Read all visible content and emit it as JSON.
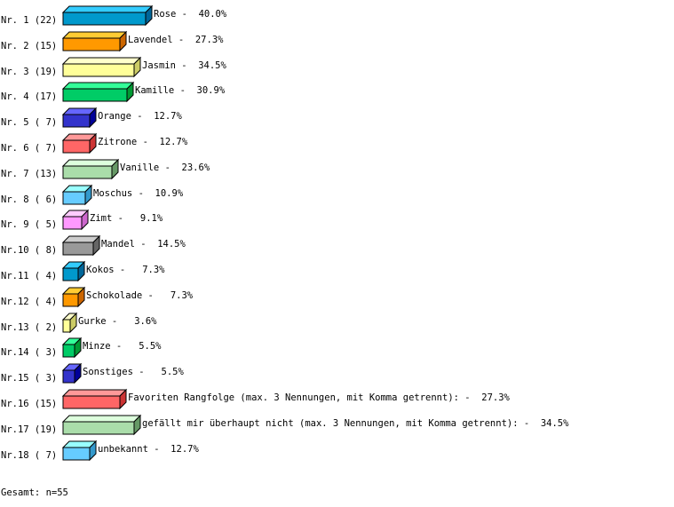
{
  "chart_data": {
    "type": "bar",
    "orientation": "horizontal",
    "style": "3d",
    "grid": false,
    "xlim": [
      0,
      100
    ],
    "rows": [
      {
        "rank": "Nr. 1",
        "count": 22,
        "category": "Rose",
        "percent": 40.0,
        "left_label": "Nr. 1 (22)",
        "right_label": "Rose -  40.0%"
      },
      {
        "rank": "Nr. 2",
        "count": 15,
        "category": "Lavendel",
        "percent": 27.3,
        "left_label": "Nr. 2 (15)",
        "right_label": "Lavendel -  27.3%"
      },
      {
        "rank": "Nr. 3",
        "count": 19,
        "category": "Jasmin",
        "percent": 34.5,
        "left_label": "Nr. 3 (19)",
        "right_label": "Jasmin -  34.5%"
      },
      {
        "rank": "Nr. 4",
        "count": 17,
        "category": "Kamille",
        "percent": 30.9,
        "left_label": "Nr. 4 (17)",
        "right_label": "Kamille -  30.9%"
      },
      {
        "rank": "Nr. 5",
        "count": 7,
        "category": "Orange",
        "percent": 12.7,
        "left_label": "Nr. 5 ( 7)",
        "right_label": "Orange -  12.7%"
      },
      {
        "rank": "Nr. 6",
        "count": 7,
        "category": "Zitrone",
        "percent": 12.7,
        "left_label": "Nr. 6 ( 7)",
        "right_label": "Zitrone -  12.7%"
      },
      {
        "rank": "Nr. 7",
        "count": 13,
        "category": "Vanille",
        "percent": 23.6,
        "left_label": "Nr. 7 (13)",
        "right_label": "Vanille -  23.6%"
      },
      {
        "rank": "Nr. 8",
        "count": 6,
        "category": "Moschus",
        "percent": 10.9,
        "left_label": "Nr. 8 ( 6)",
        "right_label": "Moschus -  10.9%"
      },
      {
        "rank": "Nr. 9",
        "count": 5,
        "category": "Zimt",
        "percent": 9.1,
        "left_label": "Nr. 9 ( 5)",
        "right_label": "Zimt -   9.1%"
      },
      {
        "rank": "Nr.10",
        "count": 8,
        "category": "Mandel",
        "percent": 14.5,
        "left_label": "Nr.10 ( 8)",
        "right_label": "Mandel -  14.5%"
      },
      {
        "rank": "Nr.11",
        "count": 4,
        "category": "Kokos",
        "percent": 7.3,
        "left_label": "Nr.11 ( 4)",
        "right_label": "Kokos -   7.3%"
      },
      {
        "rank": "Nr.12",
        "count": 4,
        "category": "Schokolade",
        "percent": 7.3,
        "left_label": "Nr.12 ( 4)",
        "right_label": "Schokolade -   7.3%"
      },
      {
        "rank": "Nr.13",
        "count": 2,
        "category": "Gurke",
        "percent": 3.6,
        "left_label": "Nr.13 ( 2)",
        "right_label": "Gurke -   3.6%"
      },
      {
        "rank": "Nr.14",
        "count": 3,
        "category": "Minze",
        "percent": 5.5,
        "left_label": "Nr.14 ( 3)",
        "right_label": "Minze -   5.5%"
      },
      {
        "rank": "Nr.15",
        "count": 3,
        "category": "Sonstiges",
        "percent": 5.5,
        "left_label": "Nr.15 ( 3)",
        "right_label": "Sonstiges -   5.5%"
      },
      {
        "rank": "Nr.16",
        "count": 15,
        "category": "Favoriten Rangfolge (max. 3 Nennungen, mit Komma getrennt):",
        "percent": 27.3,
        "left_label": "Nr.16 (15)",
        "right_label": "Favoriten Rangfolge (max. 3 Nennungen, mit Komma getrennt): -  27.3%"
      },
      {
        "rank": "Nr.17",
        "count": 19,
        "category": "gefällt mir überhaupt nicht (max. 3 Nennungen, mit Komma getrennt):",
        "percent": 34.5,
        "left_label": "Nr.17 (19)",
        "right_label": "gefällt mir überhaupt nicht (max. 3 Nennungen, mit Komma getrennt): -  34.5%"
      },
      {
        "rank": "Nr.18",
        "count": 7,
        "category": "unbekannt",
        "percent": 12.7,
        "left_label": "Nr.18 ( 7)",
        "right_label": "unbekannt -  12.7%"
      }
    ],
    "palette": [
      {
        "front": "#0099cc",
        "top": "#33ccff",
        "side": "#006699"
      },
      {
        "front": "#ff9900",
        "top": "#ffcc33",
        "side": "#cc6600"
      },
      {
        "front": "#ffff99",
        "top": "#ffffcc",
        "side": "#cccc66"
      },
      {
        "front": "#00cc66",
        "top": "#33ff99",
        "side": "#009933"
      },
      {
        "front": "#3333cc",
        "top": "#6666ff",
        "side": "#000099"
      },
      {
        "front": "#ff6666",
        "top": "#ff9999",
        "side": "#cc3333"
      },
      {
        "front": "#aaddaa",
        "top": "#ddffdd",
        "side": "#669966"
      },
      {
        "front": "#66ccff",
        "top": "#99ffff",
        "side": "#3399cc"
      },
      {
        "front": "#ff99ff",
        "top": "#ffccff",
        "side": "#cc66cc"
      },
      {
        "front": "#999999",
        "top": "#cccccc",
        "side": "#666666"
      }
    ],
    "total_label": "Gesamt: n=55"
  }
}
